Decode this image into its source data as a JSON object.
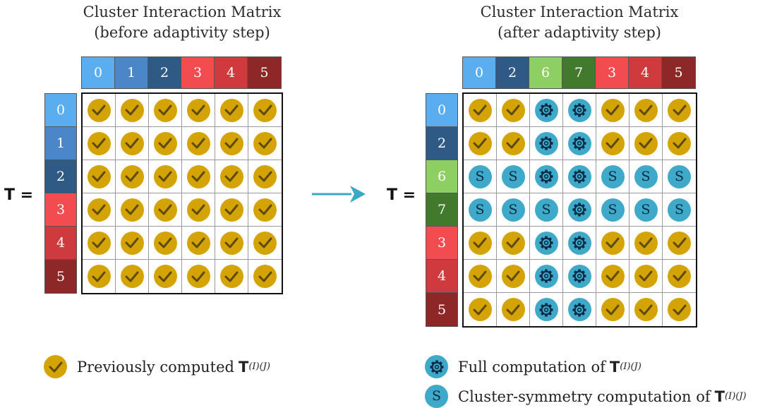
{
  "colors": {
    "check": "#d4a406",
    "gear": "#3fa9c9",
    "c0": "#5aaef0",
    "c1": "#4a86c8",
    "c2": "#2f5a86",
    "c3": "#f24b50",
    "c4": "#cf3a3e",
    "c5": "#8e2727",
    "c6": "#8dcf62",
    "c7": "#417a2d",
    "arrow": "#3ca8c8"
  },
  "left": {
    "title_line1": "Cluster Interaction Matrix",
    "title_line2": "(before adaptivity step)",
    "t_label": "T =",
    "col_labels": [
      "0",
      "1",
      "2",
      "3",
      "4",
      "5"
    ],
    "row_labels": [
      "0",
      "1",
      "2",
      "3",
      "4",
      "5"
    ],
    "col_color_keys": [
      "c0",
      "c1",
      "c2",
      "c3",
      "c4",
      "c5"
    ],
    "row_color_keys": [
      "c0",
      "c1",
      "c2",
      "c3",
      "c4",
      "c5"
    ],
    "cells": [
      [
        "check",
        "check",
        "check",
        "check",
        "check",
        "check"
      ],
      [
        "check",
        "check",
        "check",
        "check",
        "check",
        "check"
      ],
      [
        "check",
        "check",
        "check",
        "check",
        "check",
        "check"
      ],
      [
        "check",
        "check",
        "check",
        "check",
        "check",
        "check"
      ],
      [
        "check",
        "check",
        "check",
        "check",
        "check",
        "check"
      ],
      [
        "check",
        "check",
        "check",
        "check",
        "check",
        "check"
      ]
    ]
  },
  "right": {
    "title_line1": "Cluster Interaction Matrix",
    "title_line2": "(after adaptivity step)",
    "t_label": "T =",
    "col_labels": [
      "0",
      "2",
      "6",
      "7",
      "3",
      "4",
      "5"
    ],
    "row_labels": [
      "0",
      "2",
      "6",
      "7",
      "3",
      "4",
      "5"
    ],
    "col_color_keys": [
      "c0",
      "c2",
      "c6",
      "c7",
      "c3",
      "c4",
      "c5"
    ],
    "row_color_keys": [
      "c0",
      "c2",
      "c6",
      "c7",
      "c3",
      "c4",
      "c5"
    ],
    "symmetry_letter": "S",
    "cells": [
      [
        "check",
        "check",
        "full",
        "full",
        "check",
        "check",
        "check"
      ],
      [
        "check",
        "check",
        "full",
        "full",
        "check",
        "check",
        "check"
      ],
      [
        "sym",
        "sym",
        "full",
        "full",
        "sym",
        "sym",
        "sym"
      ],
      [
        "sym",
        "sym",
        "sym",
        "full",
        "sym",
        "sym",
        "sym"
      ],
      [
        "check",
        "check",
        "full",
        "full",
        "check",
        "check",
        "check"
      ],
      [
        "check",
        "check",
        "full",
        "full",
        "check",
        "check",
        "check"
      ],
      [
        "check",
        "check",
        "full",
        "full",
        "check",
        "check",
        "check"
      ]
    ]
  },
  "legend": {
    "previous": "Previously computed",
    "full": "Full computation of",
    "symmetry": "Cluster-symmetry computation of",
    "t_symbol": "T",
    "t_superscript": "(I)(J)",
    "sym_letter": "S"
  }
}
